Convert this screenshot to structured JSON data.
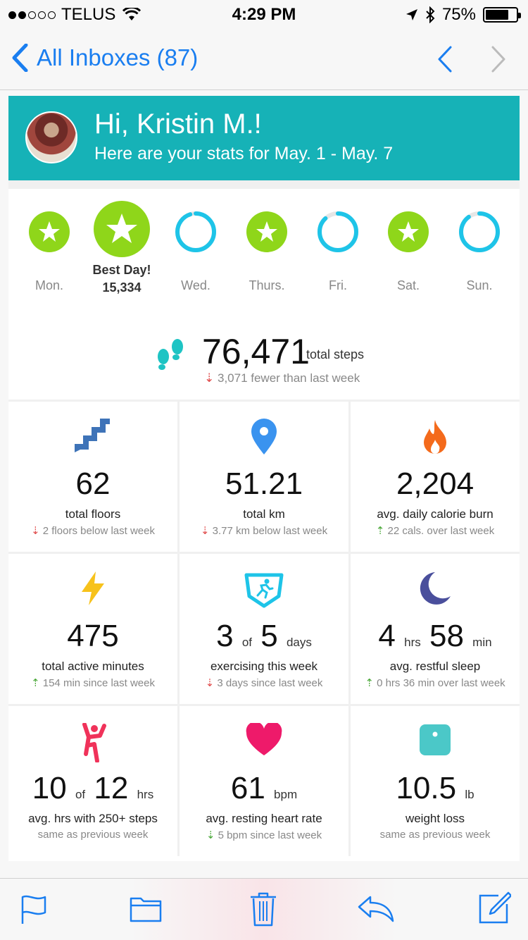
{
  "status": {
    "carrier": "TELUS",
    "time": "4:29 PM",
    "battery": "75%",
    "battery_level": 0.75
  },
  "nav": {
    "back_label": "All Inboxes (87)"
  },
  "banner": {
    "greeting": "Hi, Kristin M.!",
    "subtitle": "Here are your stats for May. 1 - May. 7"
  },
  "week": {
    "days": [
      {
        "label": "Mon.",
        "goal_met": true,
        "progress": 1.0
      },
      {
        "label": "Best Day!",
        "steps": "15,334",
        "goal_met": true,
        "progress": 1.0
      },
      {
        "label": "Wed.",
        "goal_met": false,
        "progress": 0.95
      },
      {
        "label": "Thurs.",
        "goal_met": true,
        "progress": 1.0
      },
      {
        "label": "Fri.",
        "goal_met": false,
        "progress": 0.88
      },
      {
        "label": "Sat.",
        "goal_met": true,
        "progress": 1.0
      },
      {
        "label": "Sun.",
        "goal_met": false,
        "progress": 0.9
      }
    ]
  },
  "steps": {
    "total": "76,471",
    "unit": "total steps",
    "change": "3,071 fewer than last week"
  },
  "tiles": [
    {
      "icon": "stairs-icon",
      "value": "62",
      "title": "total floors",
      "change": "2 floors below last week",
      "dir": "down"
    },
    {
      "icon": "location-pin-icon",
      "value": "51.21",
      "title": "total km",
      "change": "3.77 km below last week",
      "dir": "down"
    },
    {
      "icon": "flame-icon",
      "value": "2,204",
      "title": "avg. daily calorie burn",
      "change": "22 cals. over last week",
      "dir": "up"
    },
    {
      "icon": "lightning-icon",
      "value": "475",
      "title": "total active minutes",
      "change": "154 min since last week",
      "dir": "up"
    },
    {
      "icon": "running-badge-icon",
      "value_a": "3",
      "of": "of",
      "value_b": "5",
      "unit": "days",
      "title": "exercising this week",
      "change": "3 days since last week",
      "dir": "down"
    },
    {
      "icon": "moon-icon",
      "value_a": "4",
      "unit_a": "hrs",
      "value_b": "58",
      "unit_b": "min",
      "title": "avg. restful sleep",
      "change": "0 hrs 36 min over last week",
      "dir": "up"
    },
    {
      "icon": "active-person-icon",
      "value_a": "10",
      "of": "of",
      "value_b": "12",
      "unit": "hrs",
      "title": "avg. hrs with 250+ steps",
      "change": "same as previous week",
      "dir": "none"
    },
    {
      "icon": "heart-icon",
      "value": "61",
      "unit": "bpm",
      "title": "avg. resting heart rate",
      "change": "5 bpm since last week",
      "dir": "up"
    },
    {
      "icon": "scale-icon",
      "value": "10.5",
      "unit": "lb",
      "title": "weight loss",
      "change": "same as previous week",
      "dir": "none"
    }
  ],
  "colors": {
    "accent": "#1a7ef0",
    "banner": "#16b2b7",
    "goal_green": "#8fd61a",
    "ring_blue": "#1ec4e8"
  }
}
